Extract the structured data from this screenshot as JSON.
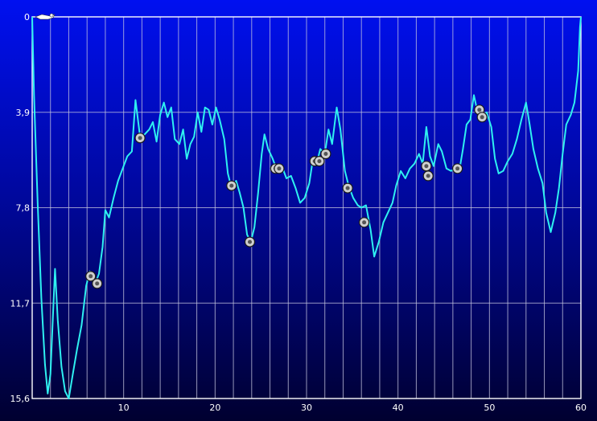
{
  "chart_data": {
    "type": "line",
    "title": "",
    "xlabel": "",
    "ylabel": "",
    "xlim": [
      0,
      60
    ],
    "ylim": [
      0,
      15.6
    ],
    "y_inverted": true,
    "grid": true,
    "x_ticks": [
      10,
      20,
      30,
      40,
      50,
      60
    ],
    "x_minor_step": 2,
    "y_ticks": [
      {
        "value": 0,
        "label": "0"
      },
      {
        "value": 3.9,
        "label": "3,9"
      },
      {
        "value": 7.8,
        "label": "7,8"
      },
      {
        "value": 11.7,
        "label": "11,7"
      },
      {
        "value": 15.6,
        "label": "15,6"
      }
    ],
    "series": [
      {
        "color": "#2ff0f0",
        "points": [
          [
            0.0,
            0.0
          ],
          [
            0.2,
            3.2
          ],
          [
            0.6,
            7.6
          ],
          [
            1.0,
            11.5
          ],
          [
            1.4,
            14.2
          ],
          [
            1.7,
            15.4
          ],
          [
            2.0,
            14.6
          ],
          [
            2.3,
            12.0
          ],
          [
            2.5,
            10.3
          ],
          [
            2.8,
            12.4
          ],
          [
            3.2,
            14.3
          ],
          [
            3.6,
            15.3
          ],
          [
            4.0,
            15.6
          ],
          [
            4.4,
            14.7
          ],
          [
            4.9,
            13.6
          ],
          [
            5.4,
            12.6
          ],
          [
            5.9,
            11.0
          ],
          [
            6.3,
            10.4
          ],
          [
            6.8,
            11.0
          ],
          [
            7.3,
            10.5
          ],
          [
            7.7,
            9.4
          ],
          [
            8.0,
            7.9
          ],
          [
            8.4,
            8.2
          ],
          [
            8.9,
            7.4
          ],
          [
            9.4,
            6.7
          ],
          [
            9.9,
            6.2
          ],
          [
            10.4,
            5.7
          ],
          [
            10.9,
            5.5
          ],
          [
            11.3,
            3.4
          ],
          [
            11.8,
            4.9
          ],
          [
            12.3,
            4.8
          ],
          [
            12.8,
            4.6
          ],
          [
            13.2,
            4.3
          ],
          [
            13.6,
            5.1
          ],
          [
            14.0,
            4.0
          ],
          [
            14.4,
            3.5
          ],
          [
            14.8,
            4.1
          ],
          [
            15.2,
            3.7
          ],
          [
            15.6,
            5.0
          ],
          [
            16.1,
            5.2
          ],
          [
            16.5,
            4.6
          ],
          [
            16.9,
            5.8
          ],
          [
            17.3,
            5.2
          ],
          [
            17.7,
            4.9
          ],
          [
            18.1,
            3.9
          ],
          [
            18.5,
            4.7
          ],
          [
            18.9,
            3.7
          ],
          [
            19.3,
            3.8
          ],
          [
            19.7,
            4.4
          ],
          [
            20.1,
            3.7
          ],
          [
            20.5,
            4.2
          ],
          [
            21.0,
            5.0
          ],
          [
            21.4,
            6.4
          ],
          [
            21.8,
            7.0
          ],
          [
            22.3,
            6.7
          ],
          [
            22.7,
            7.2
          ],
          [
            23.1,
            7.8
          ],
          [
            23.5,
            8.9
          ],
          [
            23.9,
            9.2
          ],
          [
            24.3,
            8.6
          ],
          [
            24.7,
            7.2
          ],
          [
            25.1,
            5.6
          ],
          [
            25.4,
            4.8
          ],
          [
            25.8,
            5.4
          ],
          [
            26.3,
            5.8
          ],
          [
            26.8,
            6.3
          ],
          [
            27.3,
            6.1
          ],
          [
            27.8,
            6.6
          ],
          [
            28.3,
            6.5
          ],
          [
            28.8,
            7.0
          ],
          [
            29.3,
            7.6
          ],
          [
            29.8,
            7.4
          ],
          [
            30.3,
            6.8
          ],
          [
            30.7,
            5.8
          ],
          [
            31.1,
            6.0
          ],
          [
            31.5,
            5.4
          ],
          [
            32.0,
            5.6
          ],
          [
            32.4,
            4.6
          ],
          [
            32.8,
            5.2
          ],
          [
            33.3,
            3.7
          ],
          [
            33.7,
            4.6
          ],
          [
            34.2,
            6.3
          ],
          [
            34.6,
            6.9
          ],
          [
            35.1,
            7.4
          ],
          [
            35.6,
            7.7
          ],
          [
            36.0,
            7.8
          ],
          [
            36.5,
            7.7
          ],
          [
            37.0,
            8.7
          ],
          [
            37.4,
            9.8
          ],
          [
            37.9,
            9.2
          ],
          [
            38.4,
            8.4
          ],
          [
            38.9,
            8.0
          ],
          [
            39.4,
            7.6
          ],
          [
            39.8,
            6.9
          ],
          [
            40.3,
            6.3
          ],
          [
            40.8,
            6.6
          ],
          [
            41.3,
            6.2
          ],
          [
            41.8,
            6.0
          ],
          [
            42.3,
            5.6
          ],
          [
            42.7,
            6.0
          ],
          [
            43.1,
            4.5
          ],
          [
            43.5,
            5.7
          ],
          [
            43.9,
            6.1
          ],
          [
            44.4,
            5.2
          ],
          [
            44.8,
            5.5
          ],
          [
            45.3,
            6.2
          ],
          [
            45.8,
            6.3
          ],
          [
            46.3,
            6.2
          ],
          [
            46.7,
            6.3
          ],
          [
            47.1,
            5.4
          ],
          [
            47.5,
            4.4
          ],
          [
            47.9,
            4.2
          ],
          [
            48.3,
            3.2
          ],
          [
            48.7,
            3.9
          ],
          [
            49.2,
            4.2
          ],
          [
            49.7,
            3.9
          ],
          [
            50.2,
            4.5
          ],
          [
            50.6,
            5.8
          ],
          [
            51.0,
            6.4
          ],
          [
            51.5,
            6.3
          ],
          [
            52.0,
            5.9
          ],
          [
            52.5,
            5.6
          ],
          [
            53.0,
            5.0
          ],
          [
            53.5,
            4.2
          ],
          [
            54.0,
            3.5
          ],
          [
            54.4,
            4.4
          ],
          [
            54.8,
            5.4
          ],
          [
            55.3,
            6.2
          ],
          [
            55.8,
            6.8
          ],
          [
            56.2,
            8.0
          ],
          [
            56.7,
            8.8
          ],
          [
            57.2,
            8.0
          ],
          [
            57.6,
            7.0
          ],
          [
            58.0,
            5.6
          ],
          [
            58.4,
            4.4
          ],
          [
            58.9,
            4.0
          ],
          [
            59.3,
            3.5
          ],
          [
            59.7,
            2.2
          ],
          [
            59.9,
            0.4
          ],
          [
            60.0,
            0.0
          ]
        ]
      }
    ],
    "markers": [
      {
        "x": 6.4,
        "y": 10.6
      },
      {
        "x": 7.1,
        "y": 10.9
      },
      {
        "x": 11.8,
        "y": 4.95
      },
      {
        "x": 21.8,
        "y": 6.9
      },
      {
        "x": 23.8,
        "y": 9.2
      },
      {
        "x": 26.6,
        "y": 6.2
      },
      {
        "x": 27.0,
        "y": 6.2
      },
      {
        "x": 30.9,
        "y": 5.9
      },
      {
        "x": 31.4,
        "y": 5.9
      },
      {
        "x": 32.1,
        "y": 5.6
      },
      {
        "x": 34.5,
        "y": 7.0
      },
      {
        "x": 36.3,
        "y": 8.4
      },
      {
        "x": 43.1,
        "y": 6.1
      },
      {
        "x": 43.3,
        "y": 6.5
      },
      {
        "x": 46.5,
        "y": 6.2
      },
      {
        "x": 48.9,
        "y": 3.8
      },
      {
        "x": 49.2,
        "y": 4.1
      }
    ],
    "start_icon": "diver-icon"
  }
}
